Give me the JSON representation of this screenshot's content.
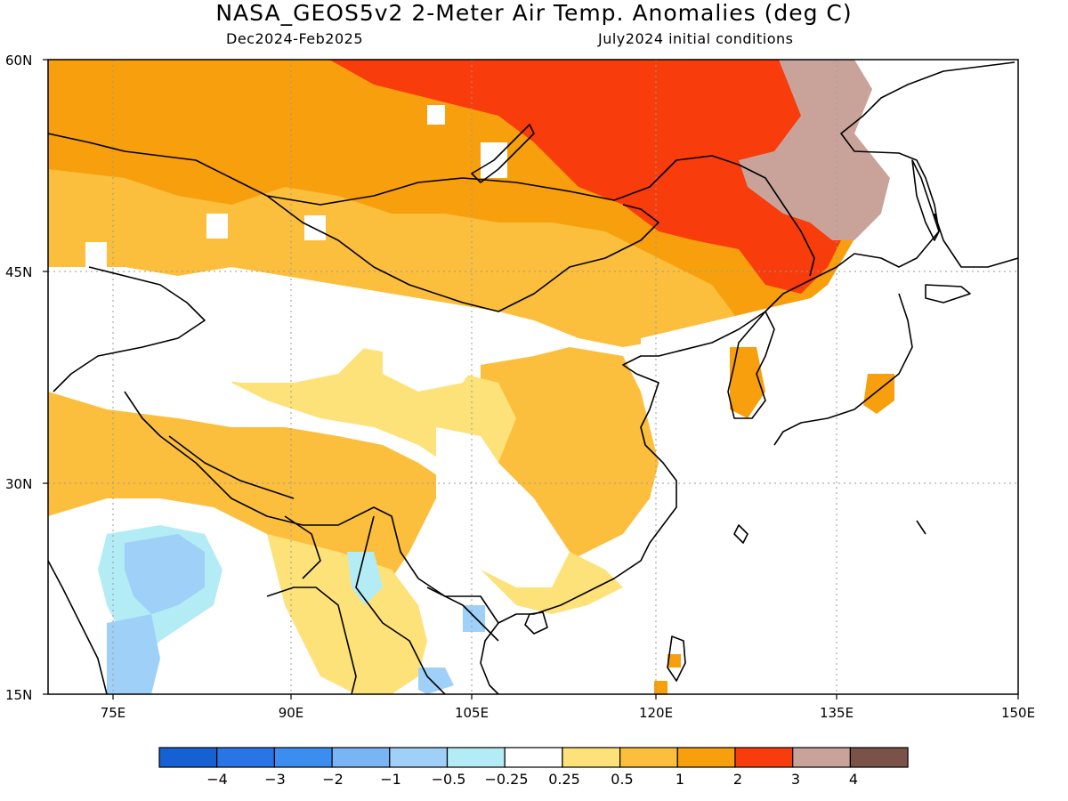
{
  "title": "NASA_GEOS5v2 2-Meter Air Temp. Anomalies (deg C)",
  "subtitle_left": "Dec2024-Feb2025",
  "subtitle_right": "July2024 initial conditions",
  "lat_labels": [
    "60N",
    "45N",
    "30N",
    "15N"
  ],
  "lon_labels": [
    "75E",
    "90E",
    "105E",
    "120E",
    "135E",
    "150E"
  ],
  "colorbar": {
    "colors": [
      "#1560d2",
      "#2a75e6",
      "#3b8ef0",
      "#79b4f4",
      "#9fd0f8",
      "#b4ecf5",
      "#ffffff",
      "#fde27a",
      "#fbbf3d",
      "#f79f0d",
      "#f83c0c",
      "#c9a39a",
      "#7a5248"
    ],
    "labels": [
      "-4",
      "-3",
      "-2",
      "-1",
      "-0.5",
      "-0.25",
      "0.25",
      "0.5",
      "1",
      "2",
      "3",
      "4"
    ]
  }
}
